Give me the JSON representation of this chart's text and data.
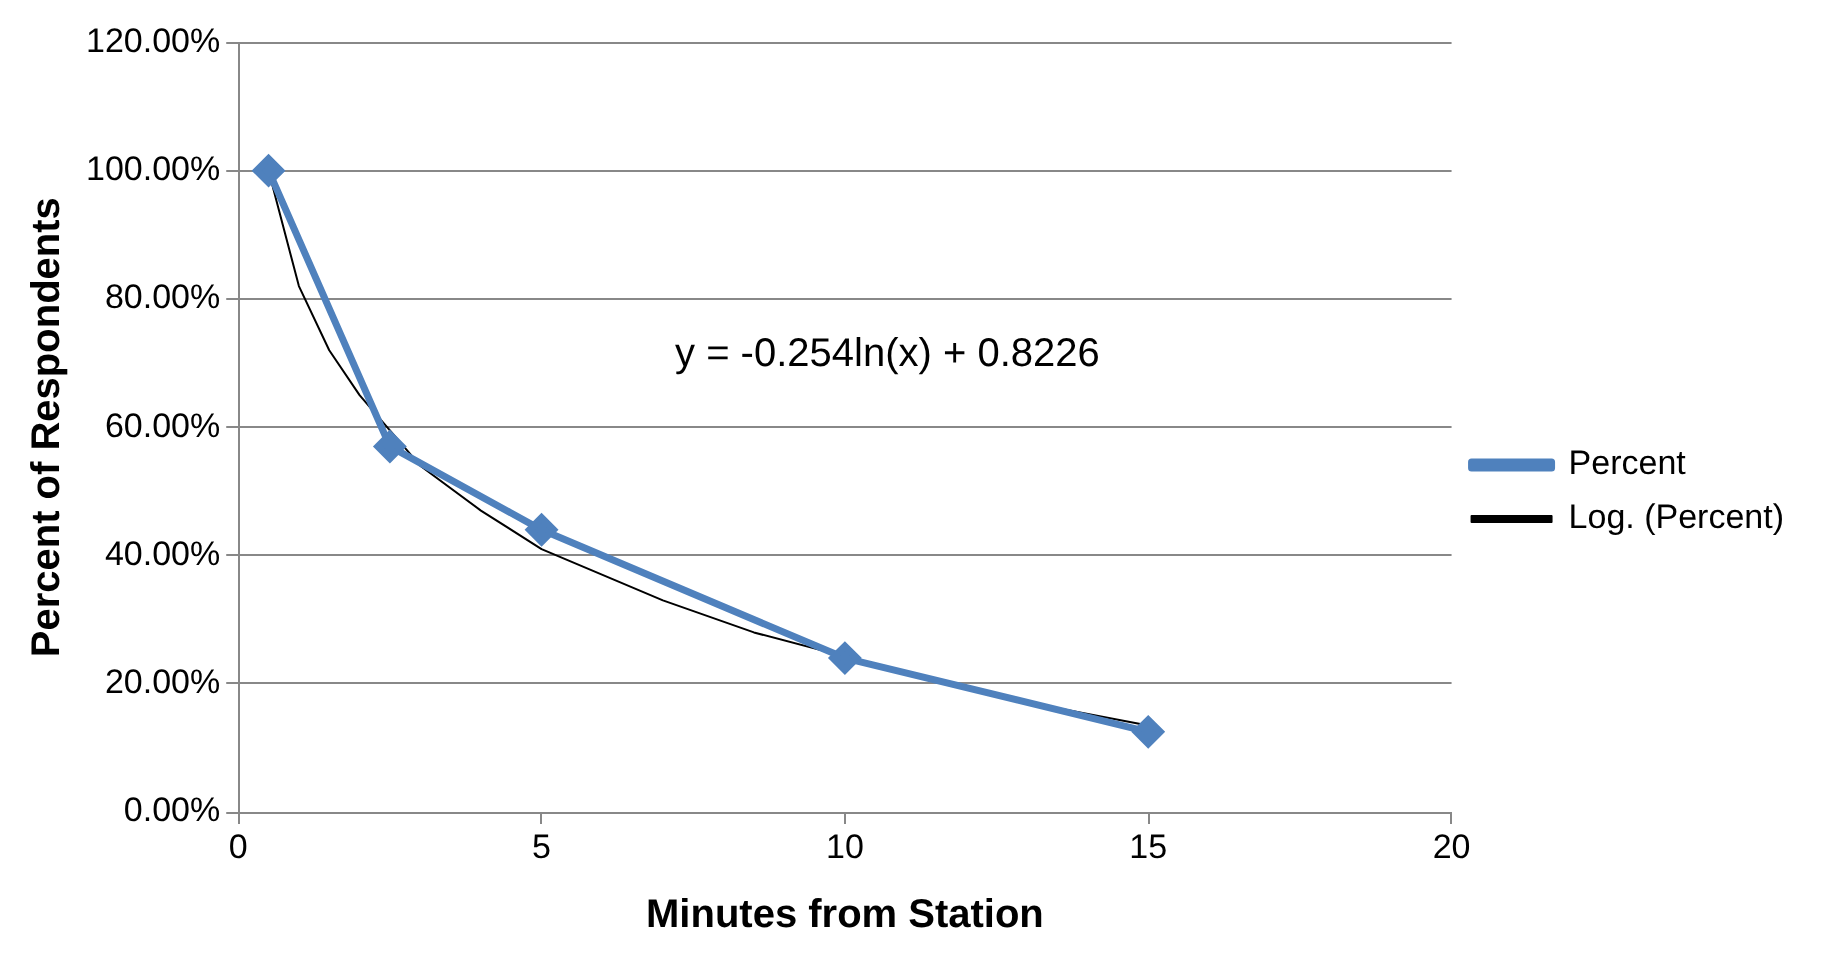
{
  "chart_data": {
    "type": "line",
    "xlabel": "Minutes from Station",
    "ylabel": "Percent of Respondents",
    "xlim": [
      0,
      20
    ],
    "xticks": [
      0,
      5,
      10,
      15,
      20
    ],
    "ylim": [
      0,
      1.2
    ],
    "yticks": [
      {
        "value": 0,
        "label": "0.00%"
      },
      {
        "value": 0.2,
        "label": "20.00%"
      },
      {
        "value": 0.4,
        "label": "40.00%"
      },
      {
        "value": 0.6,
        "label": "60.00%"
      },
      {
        "value": 0.8,
        "label": "80.00%"
      },
      {
        "value": 1,
        "label": "100.00%"
      },
      {
        "value": 1.2,
        "label": "120.00%"
      }
    ],
    "grid": "y",
    "legend": "right",
    "marker": "diamond",
    "line_style": "solid",
    "series": [
      {
        "name": "Percent",
        "color": "#4f81bd",
        "x": [
          0.5,
          2.5,
          5,
          10,
          15
        ],
        "values": [
          1,
          0.57,
          0.44,
          0.24,
          0.125
        ]
      },
      {
        "name": "Log. (Percent)",
        "type": "line",
        "marker": "none",
        "color": "#000000",
        "x": [
          0.5,
          1,
          1.5,
          2,
          3,
          4,
          5,
          7,
          8.5,
          12.5,
          15
        ],
        "values": [
          1,
          0.82,
          0.72,
          0.65,
          0.54,
          0.47,
          0.41,
          0.33,
          0.28,
          0.18,
          0.135
        ]
      }
    ],
    "annotations": [
      "y = -0.254ln(x) + 0.8226"
    ]
  }
}
